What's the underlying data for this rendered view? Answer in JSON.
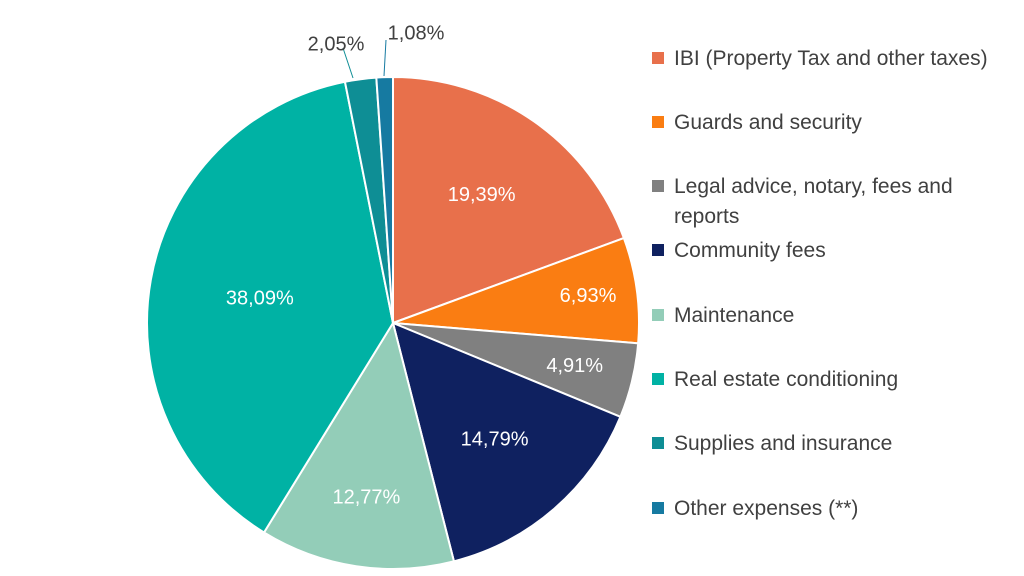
{
  "chart_data": {
    "type": "pie",
    "categories": [
      "IBI (Property Tax and other taxes)",
      "Guards and security",
      "Legal advice, notary, fees and reports",
      "Community fees",
      "Maintenance",
      "Real estate conditioning",
      "Supplies and insurance",
      "Other expenses (**)"
    ],
    "values": [
      19.39,
      6.93,
      4.91,
      14.79,
      12.77,
      38.09,
      2.05,
      1.08
    ],
    "value_labels": [
      "19,39%",
      "6,93%",
      "4,91%",
      "14,79%",
      "12,77%",
      "38,09%",
      "2,05%",
      "1,08%"
    ],
    "colors": [
      "#E8704B",
      "#FA7D12",
      "#808080",
      "#0F2160",
      "#93CDB8",
      "#00B2A4",
      "#0E8E95",
      "#167AA1"
    ],
    "label_colors": [
      "#ffffff",
      "#ffffff",
      "#ffffff",
      "#ffffff",
      "#ffffff",
      "#ffffff",
      "#404040",
      "#404040"
    ],
    "legend_position": "right"
  }
}
